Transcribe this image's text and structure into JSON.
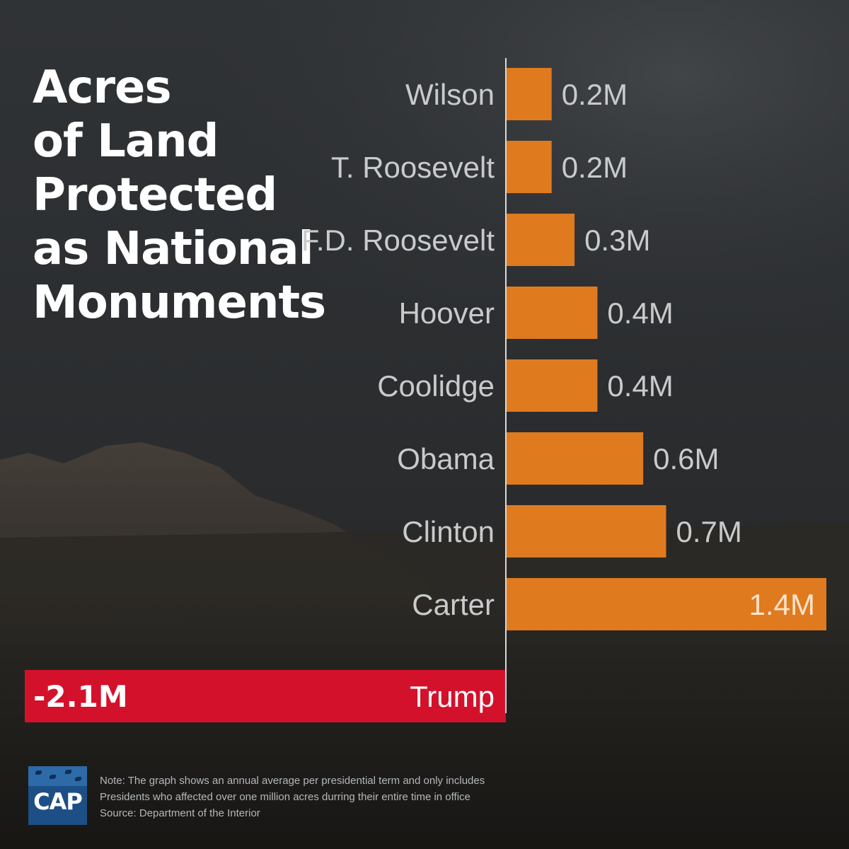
{
  "title_lines": [
    "Acres",
    "of Land",
    "Protected",
    "as National",
    "Monuments"
  ],
  "chart_data": {
    "type": "bar",
    "orientation": "horizontal",
    "title": "Acres of Land Protected as National Monuments",
    "categories": [
      "Wilson",
      "T. Roosevelt",
      "F.D. Roosevelt",
      "Hoover",
      "Coolidge",
      "Obama",
      "Clinton",
      "Carter",
      "Trump"
    ],
    "values": [
      0.2,
      0.2,
      0.3,
      0.4,
      0.4,
      0.6,
      0.7,
      1.4,
      -2.1
    ],
    "value_labels": [
      "0.2M",
      "0.2M",
      "0.3M",
      "0.4M",
      "0.4M",
      "0.6M",
      "0.7M",
      "1.4M",
      "-2.1M"
    ],
    "unit": "million acres",
    "xlim": [
      -2.1,
      1.4
    ],
    "grid": false,
    "colors": {
      "positive": "#e07a1f",
      "negative": "#d4112b"
    }
  },
  "logo": {
    "text": "CAP"
  },
  "footnote": [
    "Note: The graph shows an annual average per presidential term and only includes",
    "Presidents who affected over one million acres durring their entire time in office",
    "Source: Department of the Interior"
  ]
}
